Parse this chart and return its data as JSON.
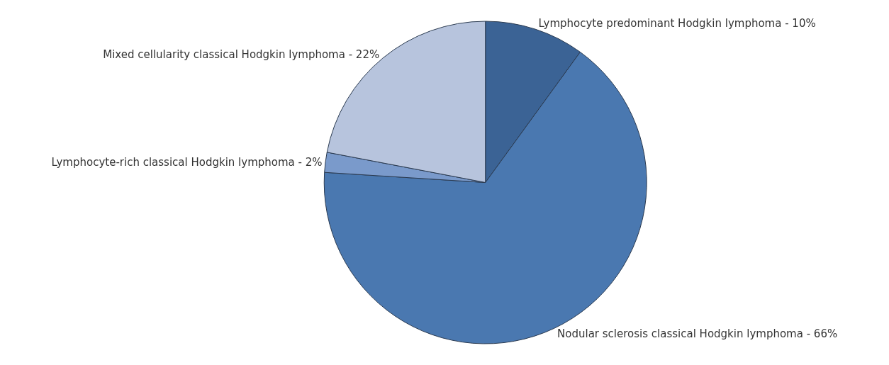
{
  "chart_data": {
    "type": "pie",
    "categories": [
      "Lymphocyte predominant Hodgkin lymphoma - 10%",
      "Nodular sclerosis classical Hodgkin lymphoma - 66%",
      "Lymphocyte-rich classical Hodgkin lymphoma - 2%",
      "Mixed cellularity classical Hodgkin lymphoma - 22%"
    ],
    "values": [
      10,
      66,
      2,
      22
    ],
    "colors": [
      "#3b6395",
      "#4a78b0",
      "#7a9acb",
      "#b7c4dd"
    ],
    "legend": false
  }
}
